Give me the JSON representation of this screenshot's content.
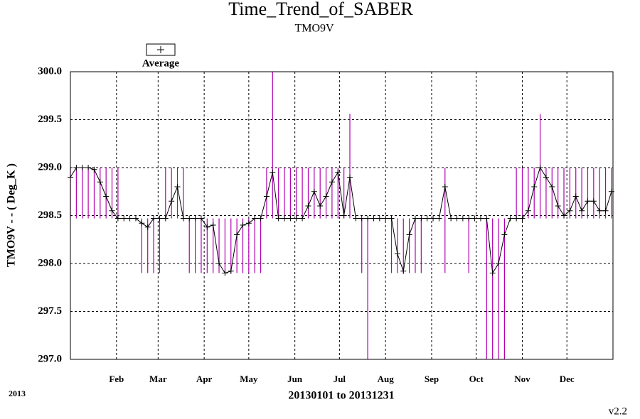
{
  "chart_data": {
    "type": "line",
    "title": "Time_Trend_of_SABER",
    "subtitle": "TMO9V",
    "y_label": "TMO9V  - - ( Deg_K )",
    "x_label": "20130101 to 20131231",
    "year_note": "2013",
    "version": "v2.2",
    "xlim": [
      1,
      366
    ],
    "xticks": [
      {
        "value": 32,
        "label": "Feb"
      },
      {
        "value": 60,
        "label": "Mar"
      },
      {
        "value": 91,
        "label": "Apr"
      },
      {
        "value": 121,
        "label": "May"
      },
      {
        "value": 152,
        "label": "Jun"
      },
      {
        "value": 182,
        "label": "Jul"
      },
      {
        "value": 213,
        "label": "Aug"
      },
      {
        "value": 244,
        "label": "Sep"
      },
      {
        "value": 274,
        "label": "Oct"
      },
      {
        "value": 305,
        "label": "Nov"
      },
      {
        "value": 335,
        "label": "Dec"
      }
    ],
    "ylim": [
      297,
      300
    ],
    "yticks": [
      {
        "value": 297,
        "label": "297.0"
      },
      {
        "value": 297.5,
        "label": "297.5"
      },
      {
        "value": 298,
        "label": "298.0"
      },
      {
        "value": 298.5,
        "label": "298.5"
      },
      {
        "value": 299,
        "label": "299.0"
      },
      {
        "value": 299.5,
        "label": "299.5"
      },
      {
        "value": 300,
        "label": "300.0"
      }
    ],
    "grid": true,
    "x": [
      1,
      5,
      9,
      13,
      17,
      21,
      25,
      29,
      33,
      37,
      41,
      45,
      49,
      53,
      57,
      61,
      65,
      69,
      73,
      77,
      81,
      85,
      89,
      93,
      97,
      101,
      105,
      109,
      113,
      117,
      121,
      125,
      129,
      133,
      137,
      141,
      145,
      149,
      153,
      157,
      161,
      165,
      169,
      173,
      177,
      181,
      185,
      189,
      193,
      197,
      201,
      205,
      209,
      213,
      217,
      221,
      225,
      229,
      233,
      237,
      241,
      245,
      249,
      253,
      257,
      261,
      265,
      269,
      273,
      277,
      281,
      285,
      289,
      293,
      297,
      301,
      305,
      309,
      313,
      317,
      321,
      325,
      329,
      333,
      337,
      341,
      345,
      349,
      353,
      357,
      361,
      365
    ],
    "series": [
      {
        "name": "Average",
        "color": "#000000",
        "values": [
          298.9,
          299.0,
          299.0,
          299.0,
          298.98,
          298.85,
          298.7,
          298.55,
          298.47,
          298.47,
          298.47,
          298.47,
          298.42,
          298.38,
          298.47,
          298.47,
          298.47,
          298.65,
          298.8,
          298.47,
          298.47,
          298.47,
          298.47,
          298.38,
          298.4,
          298.0,
          297.9,
          297.92,
          298.3,
          298.4,
          298.42,
          298.47,
          298.47,
          298.7,
          298.95,
          298.47,
          298.47,
          298.47,
          298.47,
          298.47,
          298.6,
          298.75,
          298.6,
          298.7,
          298.85,
          298.95,
          298.5,
          298.9,
          298.47,
          298.47,
          298.47,
          298.47,
          298.47,
          298.47,
          298.47,
          298.1,
          297.92,
          298.3,
          298.47,
          298.47,
          298.47,
          298.47,
          298.47,
          298.8,
          298.47,
          298.47,
          298.47,
          298.47,
          298.47,
          298.47,
          298.47,
          297.9,
          298.0,
          298.3,
          298.47,
          298.47,
          298.47,
          298.55,
          298.8,
          299.0,
          298.9,
          298.8,
          298.6,
          298.5,
          298.55,
          298.7,
          298.55,
          298.65,
          298.65,
          298.55,
          298.55,
          298.75
        ]
      }
    ],
    "range": {
      "color": "#b000b0",
      "low": [
        298.47,
        298.47,
        298.47,
        298.47,
        298.47,
        298.47,
        298.47,
        298.47,
        298.47,
        298.47,
        298.47,
        298.47,
        297.9,
        297.9,
        297.9,
        297.9,
        298.47,
        298.47,
        298.47,
        298.47,
        297.9,
        297.9,
        297.9,
        297.9,
        297.9,
        297.9,
        297.9,
        297.9,
        297.9,
        297.9,
        297.9,
        297.9,
        297.9,
        298.47,
        298.47,
        298.47,
        298.47,
        298.47,
        298.47,
        298.47,
        298.47,
        298.47,
        298.47,
        298.47,
        298.47,
        298.47,
        298.47,
        298.47,
        298.47,
        297.9,
        297.0,
        298.47,
        298.47,
        298.47,
        297.9,
        297.9,
        297.9,
        297.9,
        297.9,
        297.9,
        298.47,
        298.47,
        298.47,
        297.9,
        298.47,
        298.47,
        298.47,
        297.9,
        298.47,
        298.47,
        297.0,
        297.0,
        297.0,
        297.0,
        298.47,
        298.47,
        298.47,
        298.47,
        298.47,
        298.47,
        298.47,
        298.47,
        298.47,
        298.47,
        298.47,
        298.47,
        298.47,
        298.47,
        298.47,
        298.47,
        298.47,
        298.47
      ],
      "high": [
        299.0,
        299.0,
        299.0,
        299.0,
        299.0,
        299.0,
        299.0,
        299.0,
        299.0,
        298.47,
        298.47,
        298.47,
        298.47,
        298.47,
        298.47,
        298.47,
        299.0,
        299.0,
        299.0,
        299.0,
        298.47,
        298.47,
        298.47,
        298.47,
        298.47,
        298.47,
        298.47,
        298.47,
        298.47,
        298.47,
        298.47,
        298.47,
        298.47,
        299.0,
        300.0,
        299.0,
        299.0,
        299.0,
        299.0,
        299.0,
        299.0,
        299.0,
        299.0,
        299.0,
        299.0,
        299.0,
        299.0,
        299.56,
        298.47,
        298.47,
        298.47,
        298.47,
        298.47,
        298.47,
        298.47,
        298.47,
        298.47,
        298.47,
        298.47,
        298.47,
        298.47,
        298.47,
        298.47,
        299.0,
        298.47,
        298.47,
        298.47,
        298.47,
        298.47,
        298.47,
        298.47,
        298.47,
        298.47,
        298.47,
        298.47,
        299.0,
        299.0,
        299.0,
        299.0,
        299.56,
        299.0,
        299.0,
        299.0,
        299.0,
        299.0,
        299.0,
        299.0,
        299.0,
        299.0,
        299.0,
        299.0,
        299.0
      ]
    }
  }
}
